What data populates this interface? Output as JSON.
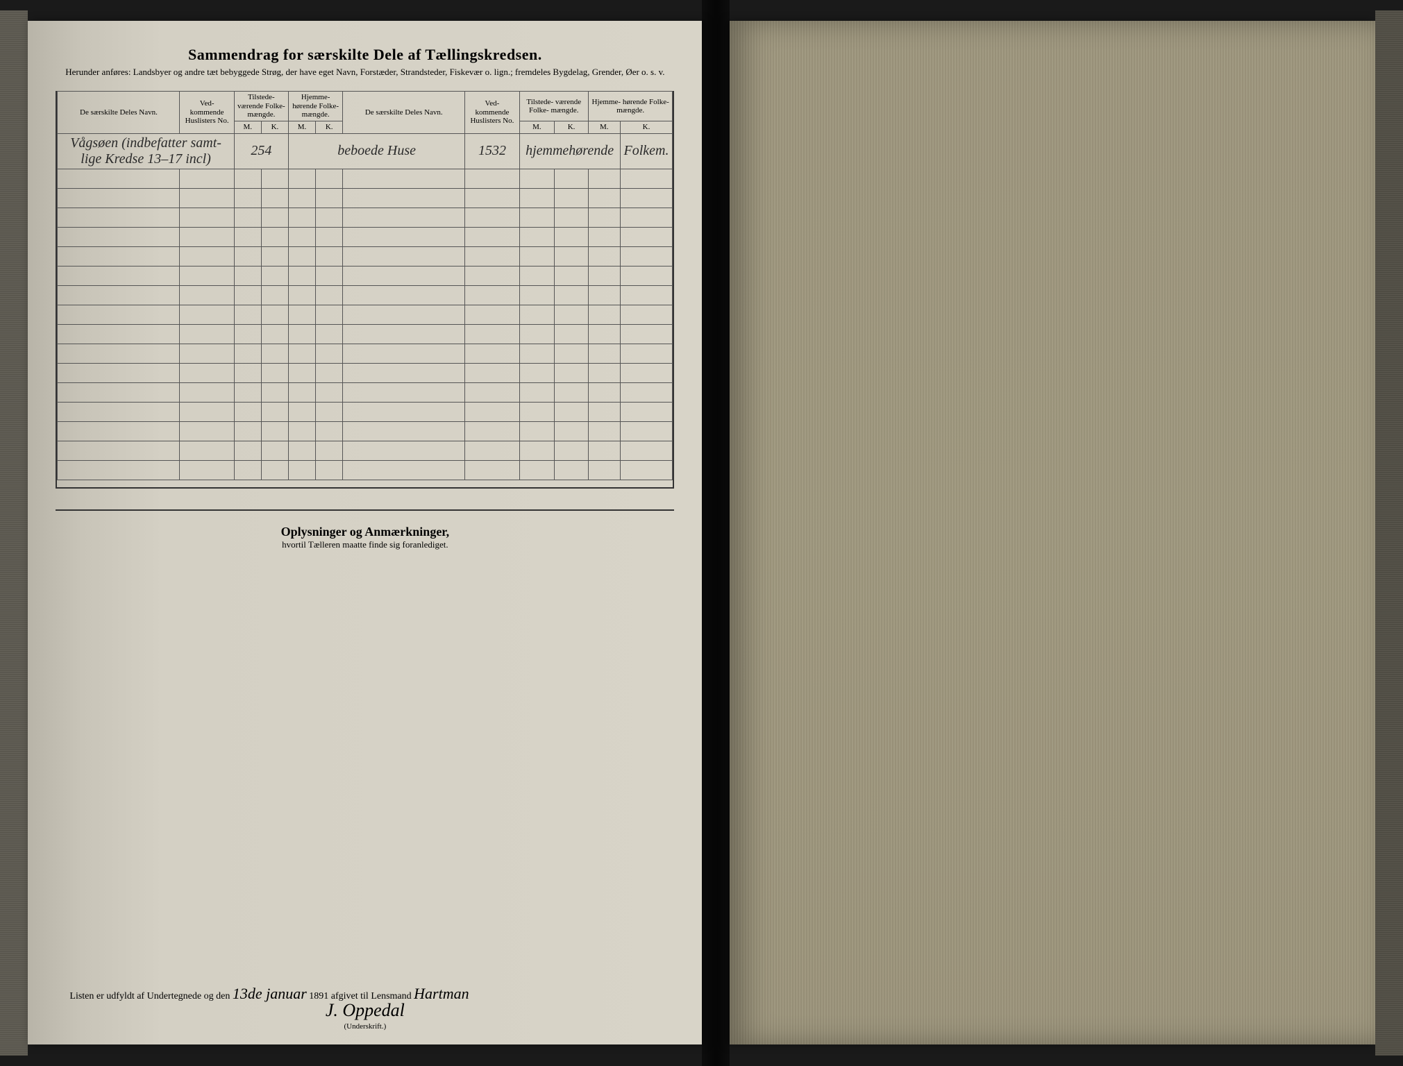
{
  "title": "Sammendrag for særskilte Dele af Tællingskredsen.",
  "subtitle": "Herunder anføres: Landsbyer og andre tæt bebyggede Strøg, der have eget Navn, Forstæder, Strandsteder, Fiskevær o. lign.; fremdeles Bygdelag, Grender, Øer o. s. v.",
  "columns": {
    "navn": "De særskilte Deles Navn.",
    "huslister": "Ved- kommende Huslisters No.",
    "tilstede": "Tilstede- værende Folke- mængde.",
    "hjemme": "Hjemme- hørende Folke- mængde.",
    "m": "M.",
    "k": "K."
  },
  "row1": {
    "navn": "Vågsøen (indbefatter samt-lige Kredse 13–17 incl)",
    "count1": "254",
    "text1": "beboede Huse",
    "count2": "1532",
    "text2": "hjemmehørende",
    "text3": "Folkem."
  },
  "blank_rows": 16,
  "section2": {
    "title": "Oplysninger og Anmærkninger,",
    "sub": "hvortil Tælleren maatte finde sig foranlediget."
  },
  "footer": {
    "prefix": "Listen er udfyldt af Undertegnede og den",
    "date_hand": "13de januar",
    "year": "1891",
    "middle": "afgivet til Lensmand",
    "lensmand": "Hartman",
    "signature": "J. Oppedal",
    "underskrift": "(Underskrift.)"
  },
  "colors": {
    "ink": "#2a2a2a",
    "paper_left": "#d4d0c4",
    "paper_right": "#8a8679",
    "border": "#555"
  }
}
